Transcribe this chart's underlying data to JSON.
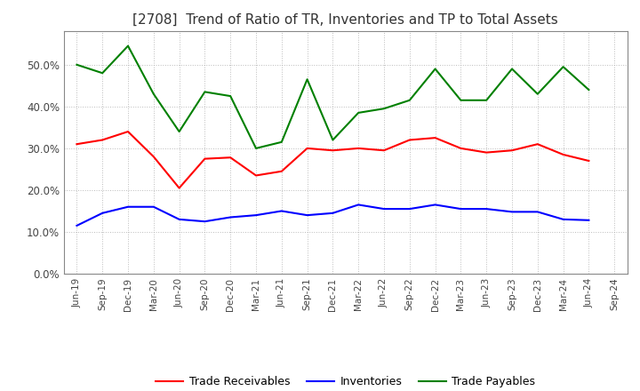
{
  "title": "[2708]  Trend of Ratio of TR, Inventories and TP to Total Assets",
  "x_labels": [
    "Jun-19",
    "Sep-19",
    "Dec-19",
    "Mar-20",
    "Jun-20",
    "Sep-20",
    "Dec-20",
    "Mar-21",
    "Jun-21",
    "Sep-21",
    "Dec-21",
    "Mar-22",
    "Jun-22",
    "Sep-22",
    "Dec-22",
    "Mar-23",
    "Jun-23",
    "Sep-23",
    "Dec-23",
    "Mar-24",
    "Jun-24",
    "Sep-24"
  ],
  "trade_receivables": [
    0.31,
    0.32,
    0.34,
    0.28,
    0.205,
    0.275,
    0.278,
    0.235,
    0.245,
    0.3,
    0.295,
    0.3,
    0.295,
    0.32,
    0.325,
    0.3,
    0.29,
    0.295,
    0.31,
    0.285,
    0.27,
    null
  ],
  "inventories": [
    0.115,
    0.145,
    0.16,
    0.16,
    0.13,
    0.125,
    0.135,
    0.14,
    0.15,
    0.14,
    0.145,
    0.165,
    0.155,
    0.155,
    0.165,
    0.155,
    0.155,
    0.148,
    0.148,
    0.13,
    0.128,
    null
  ],
  "trade_payables": [
    0.5,
    0.48,
    0.545,
    0.43,
    0.34,
    0.435,
    0.425,
    0.3,
    0.315,
    0.465,
    0.32,
    0.385,
    0.395,
    0.415,
    0.49,
    0.415,
    0.415,
    0.49,
    0.43,
    0.495,
    0.44,
    null
  ],
  "tr_color": "#FF0000",
  "inv_color": "#0000FF",
  "tp_color": "#008000",
  "ylim": [
    0.0,
    0.58
  ],
  "yticks": [
    0.0,
    0.1,
    0.2,
    0.3,
    0.4,
    0.5
  ],
  "background_color": "#FFFFFF",
  "plot_bg_color": "#FFFFFF",
  "grid_color": "#AAAAAA",
  "legend_labels": [
    "Trade Receivables",
    "Inventories",
    "Trade Payables"
  ]
}
